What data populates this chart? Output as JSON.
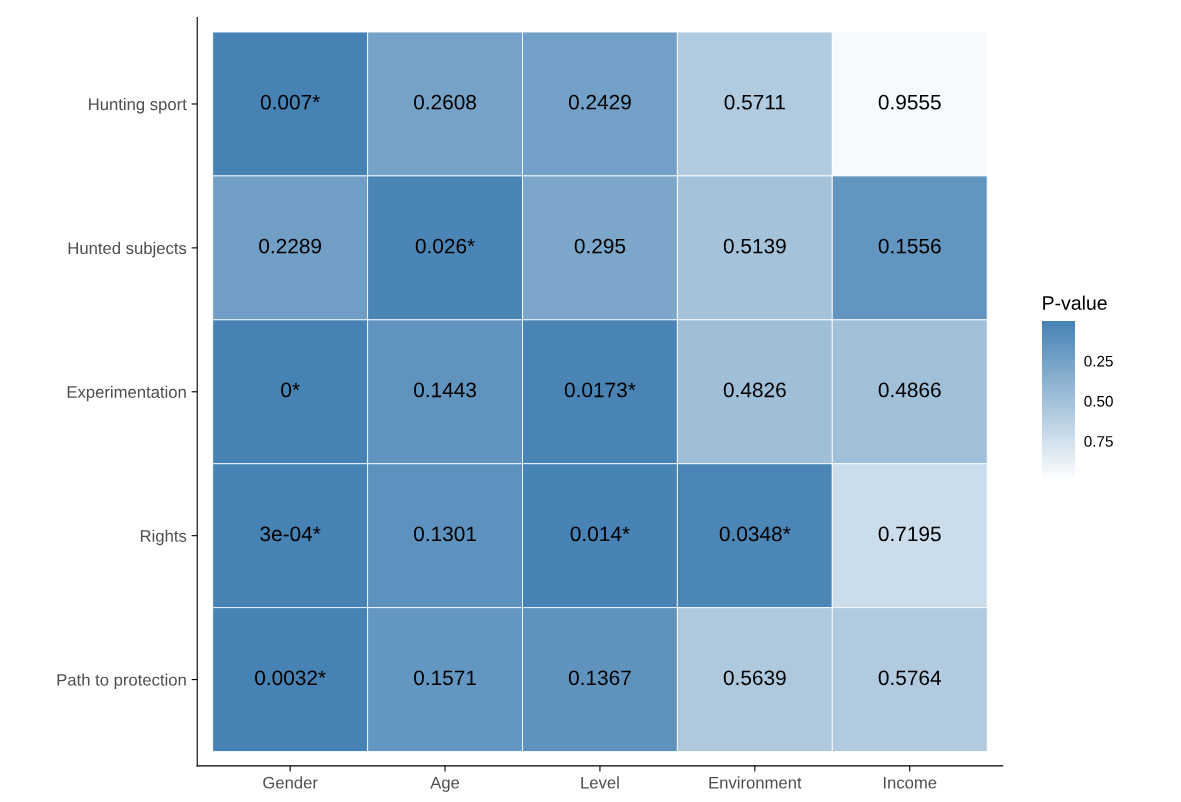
{
  "chart_data": {
    "type": "heatmap",
    "categories": [
      "Gender",
      "Age",
      "Level",
      "Environment",
      "Income"
    ],
    "y_categories": [
      "Hunting sport",
      "Hunted subjects",
      "Experimentation",
      "Rights",
      "Path to protection"
    ],
    "cells": [
      [
        0.007,
        0.2608,
        0.2429,
        0.5711,
        0.9555
      ],
      [
        0.2289,
        0.026,
        0.295,
        0.5139,
        0.1556
      ],
      [
        0,
        0.1443,
        0.0173,
        0.4826,
        0.4866
      ],
      [
        0.0003,
        0.1301,
        0.014,
        0.0348,
        0.7195
      ],
      [
        0.0032,
        0.1571,
        0.1367,
        0.5639,
        0.5764
      ]
    ],
    "cell_labels": [
      [
        "0.007*",
        "0.2608",
        "0.2429",
        "0.5711",
        "0.9555"
      ],
      [
        "0.2289",
        "0.026*",
        "0.295",
        "0.5139",
        "0.1556"
      ],
      [
        "0*",
        "0.1443",
        "0.0173*",
        "0.4826",
        "0.4866"
      ],
      [
        "3e-04*",
        "0.1301",
        "0.014*",
        "0.0348*",
        "0.7195"
      ],
      [
        "0.0032*",
        "0.1571",
        "0.1367",
        "0.5639",
        "0.5764"
      ]
    ],
    "legend_title": "P-value",
    "clim": [
      0,
      1
    ],
    "cticks": [
      {
        "value": 0.25,
        "label": "0.25"
      },
      {
        "value": 0.5,
        "label": "0.50"
      },
      {
        "value": 0.75,
        "label": "0.75"
      }
    ],
    "colors": [
      "#4682b4",
      "#ffffff"
    ]
  }
}
